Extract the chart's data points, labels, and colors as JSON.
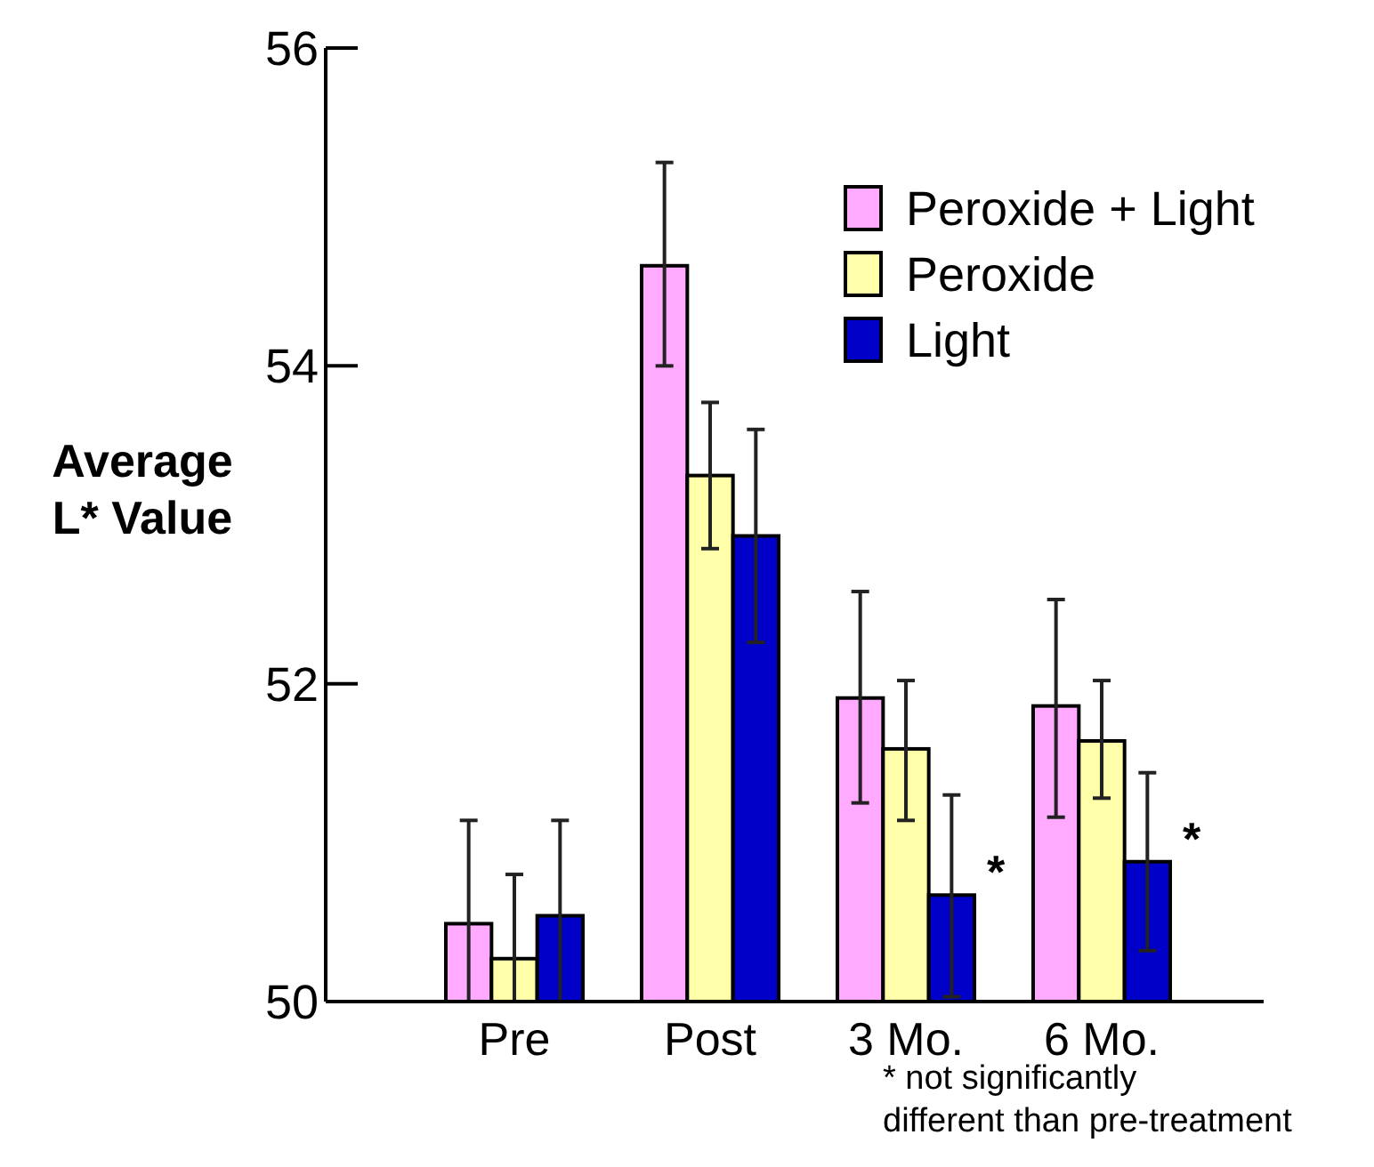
{
  "chart_data": {
    "type": "bar",
    "ylabel": "Average\nL* Value",
    "categories": [
      "Pre",
      "Post",
      "3 Mo.",
      "6 Mo."
    ],
    "ylim": [
      50,
      56
    ],
    "yticks": [
      50,
      52,
      54,
      56
    ],
    "grid": false,
    "legend": "top right",
    "series": [
      {
        "name": "Peroxide + Light",
        "color": "#ffaaff",
        "values": [
          50.49,
          54.63,
          51.91,
          51.86
        ],
        "errors": [
          [
            50,
            51.14
          ],
          [
            54.0,
            55.28
          ],
          [
            51.25,
            52.58
          ],
          [
            51.16,
            52.53
          ]
        ]
      },
      {
        "name": "Peroxide",
        "color": "#ffffaa",
        "values": [
          50.27,
          53.31,
          51.59,
          51.64
        ],
        "errors": [
          [
            50,
            50.8
          ],
          [
            52.85,
            53.77
          ],
          [
            51.14,
            52.02
          ],
          [
            51.28,
            52.02
          ]
        ]
      },
      {
        "name": "Light",
        "color": "#0000c8",
        "values": [
          50.54,
          52.93,
          50.67,
          50.88
        ],
        "errors": [
          [
            50,
            51.14
          ],
          [
            52.26,
            53.6
          ],
          [
            50.03,
            51.3
          ],
          [
            50.32,
            51.44
          ]
        ]
      }
    ],
    "annotations": [
      "*",
      "*",
      "* not significantly different than pre-treatment"
    ]
  }
}
